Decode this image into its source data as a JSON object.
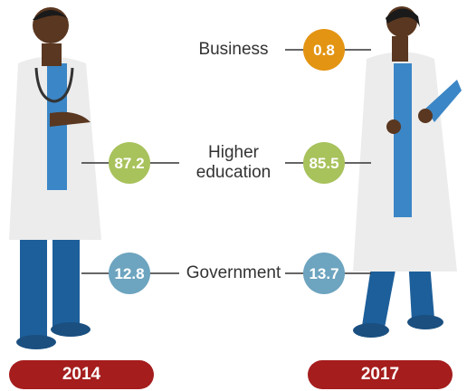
{
  "years": [
    "2014",
    "2017"
  ],
  "rows": [
    {
      "label": "Business",
      "right": {
        "value": 0.8,
        "color": "#e39412"
      }
    },
    {
      "label": "Higher education",
      "left": {
        "value": 87.2,
        "color": "#a8c25c"
      },
      "right": {
        "value": 85.5,
        "color": "#a8c25c"
      }
    },
    {
      "label": "Government",
      "left": {
        "value": 12.8,
        "color": "#6da4bf"
      },
      "right": {
        "value": 13.7,
        "color": "#6da4bf"
      }
    }
  ]
}
